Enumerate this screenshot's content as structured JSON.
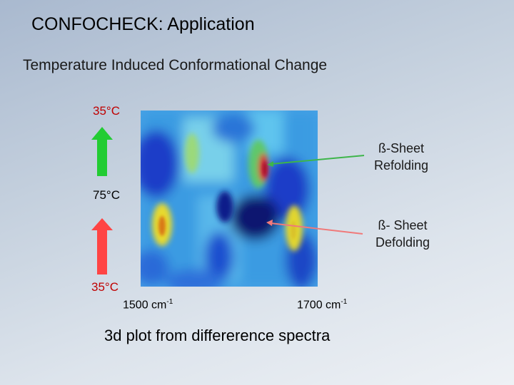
{
  "slide": {
    "title": "CONFOCHECK: Application",
    "subtitle": "Temperature Induced Conformational Change",
    "temperatures": {
      "top": "35°C",
      "middle": "75°C",
      "bottom": "35°C"
    },
    "annotations": {
      "refolding": {
        "line1": "ß-Sheet",
        "line2": "Refolding",
        "arrow_color": "#3db54a"
      },
      "defolding": {
        "line1": "ß- Sheet",
        "line2": "Defolding",
        "arrow_color": "#f07a7a"
      }
    },
    "axis": {
      "left_value": "1500 cm",
      "left_exp": "-1",
      "right_value": "1700 cm",
      "right_exp": "-1"
    },
    "caption": "3d plot from differerence spectra",
    "colors": {
      "up_arrow": "#22cc33",
      "down_arrow": "#ff4444"
    }
  }
}
